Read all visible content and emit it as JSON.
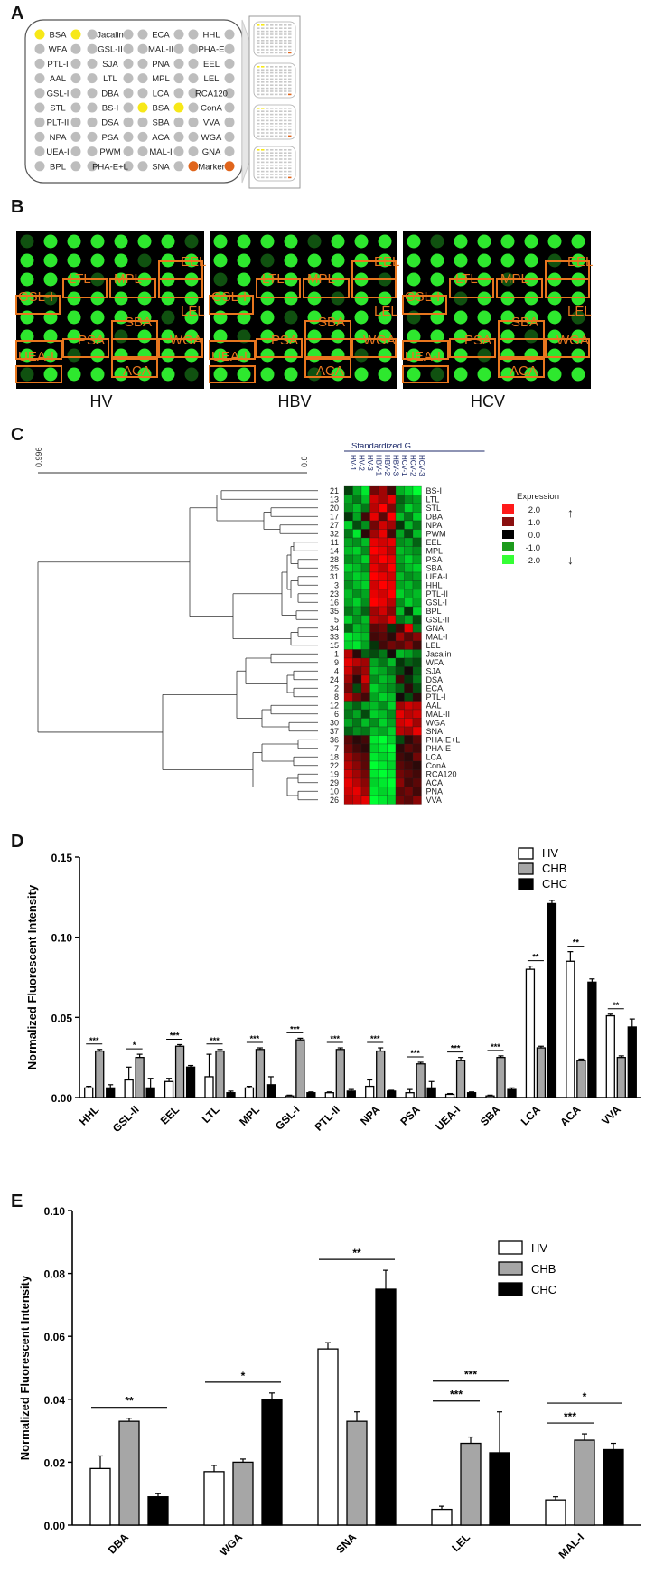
{
  "panels": {
    "a": "A",
    "b": "B",
    "c": "C",
    "d": "D",
    "e": "E"
  },
  "panel_a": {
    "rows": [
      [
        "BSA",
        "Jacalin",
        "ECA",
        "HHL"
      ],
      [
        "WFA",
        "GSL-II",
        "MAL-II",
        "PHA-E"
      ],
      [
        "PTL-I",
        "SJA",
        "PNA",
        "EEL"
      ],
      [
        "AAL",
        "LTL",
        "MPL",
        "LEL"
      ],
      [
        "GSL-I",
        "DBA",
        "LCA",
        "RCA120"
      ],
      [
        "STL",
        "BS-I",
        "BSA",
        "ConA"
      ],
      [
        "PLT-II",
        "DSA",
        "SBA",
        "VVA"
      ],
      [
        "NPA",
        "PSA",
        "ACA",
        "WGA"
      ],
      [
        "UEA-I",
        "PWM",
        "MAL-I",
        "GNA"
      ],
      [
        "BPL",
        "PHA-E+L",
        "SNA",
        "Marker"
      ]
    ],
    "colors": {
      "bsa": "#f7e818",
      "marker": "#e0651c",
      "dot": "#bdbdbd"
    }
  },
  "panel_b": {
    "groups": [
      "HV",
      "HBV",
      "HCV"
    ],
    "boxes": [
      "EEL",
      "LTL",
      "MPL",
      "GSL-I",
      "LEL",
      "SBA",
      "PSA",
      "WGA",
      "UEA-I",
      "ACA"
    ],
    "colors": {
      "box": "#e8761e",
      "spot": "#2ee82e",
      "bg": "#000000"
    }
  },
  "panel_c": {
    "scale_left": "0.996",
    "scale_right": "0.0",
    "header": "Standardized G",
    "columns": [
      "HV-1",
      "HV-2",
      "HV-3",
      "HBV-1",
      "HBV-2",
      "HBV-3",
      "HCV-1",
      "HCV-2",
      "HCV-3"
    ],
    "rows": [
      {
        "id": "21",
        "name": "BS-I"
      },
      {
        "id": "13",
        "name": "LTL"
      },
      {
        "id": "20",
        "name": "STL"
      },
      {
        "id": "17",
        "name": "DBA"
      },
      {
        "id": "27",
        "name": "NPA"
      },
      {
        "id": "32",
        "name": "PWM"
      },
      {
        "id": "11",
        "name": "EEL"
      },
      {
        "id": "14",
        "name": "MPL"
      },
      {
        "id": "28",
        "name": "PSA"
      },
      {
        "id": "25",
        "name": "SBA"
      },
      {
        "id": "31",
        "name": "UEA-I"
      },
      {
        "id": "3",
        "name": "HHL"
      },
      {
        "id": "23",
        "name": "PTL-II"
      },
      {
        "id": "16",
        "name": "GSL-I"
      },
      {
        "id": "35",
        "name": "BPL"
      },
      {
        "id": "5",
        "name": "GSL-II"
      },
      {
        "id": "34",
        "name": "GNA"
      },
      {
        "id": "33",
        "name": "MAL-I"
      },
      {
        "id": "15",
        "name": "LEL"
      },
      {
        "id": "1",
        "name": "Jacalin"
      },
      {
        "id": "9",
        "name": "WFA"
      },
      {
        "id": "4",
        "name": "SJA"
      },
      {
        "id": "24",
        "name": "DSA"
      },
      {
        "id": "2",
        "name": "ECA"
      },
      {
        "id": "8",
        "name": "PTL-I"
      },
      {
        "id": "12",
        "name": "AAL"
      },
      {
        "id": "6",
        "name": "MAL-II"
      },
      {
        "id": "30",
        "name": "WGA"
      },
      {
        "id": "37",
        "name": "SNA"
      },
      {
        "id": "36",
        "name": "PHA-E+L"
      },
      {
        "id": "7",
        "name": "PHA-E"
      },
      {
        "id": "18",
        "name": "LCA"
      },
      {
        "id": "22",
        "name": "ConA"
      },
      {
        "id": "19",
        "name": "RCA120"
      },
      {
        "id": "29",
        "name": "ACA"
      },
      {
        "id": "10",
        "name": "PNA"
      },
      {
        "id": "26",
        "name": "VVA"
      }
    ],
    "matrix": [
      [
        -0.3,
        -1.2,
        -1.8,
        0.8,
        1.2,
        0.4,
        -1.3,
        -1.6,
        -2.0
      ],
      [
        -1.2,
        -0.8,
        -1.4,
        1.6,
        1.2,
        1.8,
        -0.6,
        -1.0,
        -1.2
      ],
      [
        -1.0,
        -1.4,
        -0.8,
        1.4,
        2.0,
        0.9,
        -0.8,
        -1.6,
        -1.2
      ],
      [
        -0.2,
        -1.2,
        0.4,
        1.8,
        0.6,
        2.0,
        -1.4,
        -0.8,
        -1.6
      ],
      [
        -1.6,
        -0.4,
        -1.0,
        0.8,
        1.6,
        1.2,
        -0.2,
        -1.4,
        -0.8
      ],
      [
        -0.8,
        -1.8,
        0.2,
        1.2,
        1.8,
        0.4,
        -1.2,
        -0.4,
        -1.4
      ],
      [
        -1.2,
        -1.0,
        -1.4,
        1.8,
        1.6,
        1.8,
        -1.0,
        -1.2,
        -0.6
      ],
      [
        -1.4,
        -1.6,
        -1.0,
        2.0,
        1.8,
        1.4,
        -1.4,
        -1.2,
        -1.0
      ],
      [
        -1.0,
        -1.2,
        -1.6,
        1.6,
        2.0,
        1.8,
        -1.2,
        -1.6,
        -1.2
      ],
      [
        -1.6,
        -1.4,
        -1.0,
        1.8,
        1.4,
        2.0,
        -1.0,
        -1.4,
        -1.6
      ],
      [
        -1.2,
        -1.6,
        -1.4,
        2.0,
        1.8,
        1.6,
        -1.4,
        -1.0,
        -1.2
      ],
      [
        -1.0,
        -1.4,
        -1.6,
        1.6,
        2.0,
        1.8,
        -1.2,
        -1.4,
        -1.0
      ],
      [
        -1.4,
        -1.0,
        -1.2,
        1.8,
        1.6,
        2.0,
        -1.6,
        -1.2,
        -1.4
      ],
      [
        -1.2,
        -1.6,
        -1.0,
        2.0,
        1.8,
        1.4,
        -1.0,
        -1.6,
        -1.2
      ],
      [
        -0.8,
        -1.2,
        -0.6,
        1.2,
        1.6,
        1.0,
        -1.4,
        -0.2,
        -1.6
      ],
      [
        -1.6,
        -1.0,
        -1.4,
        1.4,
        1.2,
        1.8,
        -0.8,
        -1.2,
        -0.4
      ],
      [
        -0.6,
        -1.4,
        -1.2,
        0.6,
        0.8,
        -0.2,
        0.4,
        1.8,
        -0.8
      ],
      [
        -1.8,
        -1.6,
        -1.4,
        0.4,
        0.6,
        0.2,
        1.2,
        0.6,
        1.0
      ],
      [
        -1.6,
        -1.8,
        -1.2,
        -0.2,
        0.4,
        0.8,
        0.6,
        1.0,
        0.4
      ],
      [
        1.4,
        0.2,
        -0.6,
        -0.4,
        -0.8,
        0.0,
        -1.4,
        -1.2,
        -0.8
      ],
      [
        1.8,
        1.4,
        1.2,
        -1.2,
        -0.8,
        -1.4,
        -0.2,
        -0.6,
        -0.4
      ],
      [
        1.6,
        0.8,
        1.2,
        -1.4,
        -1.2,
        -0.8,
        -0.4,
        0.0,
        -0.6
      ],
      [
        1.2,
        0.2,
        1.6,
        -1.0,
        -1.4,
        -1.2,
        0.4,
        -0.2,
        -0.8
      ],
      [
        0.8,
        -0.4,
        1.0,
        -1.6,
        -1.2,
        -1.0,
        -0.6,
        0.2,
        -0.4
      ],
      [
        1.4,
        0.8,
        0.4,
        -1.2,
        -1.6,
        -1.4,
        0.0,
        -0.4,
        0.2
      ],
      [
        -1.0,
        -0.6,
        -1.2,
        -1.4,
        -1.0,
        -1.6,
        1.2,
        1.6,
        1.4
      ],
      [
        -0.8,
        -1.2,
        -0.4,
        -1.6,
        -1.4,
        -1.0,
        1.8,
        1.4,
        1.6
      ],
      [
        -1.2,
        -0.8,
        -1.4,
        -1.0,
        -1.6,
        -1.2,
        1.6,
        1.8,
        1.2
      ],
      [
        -0.6,
        -1.0,
        -0.8,
        -1.4,
        -1.2,
        -1.6,
        1.4,
        1.2,
        1.8
      ],
      [
        0.6,
        0.2,
        0.4,
        -1.8,
        -2.0,
        -1.6,
        -0.4,
        0.2,
        0.6
      ],
      [
        0.8,
        0.4,
        0.2,
        -1.6,
        -1.8,
        -2.0,
        0.2,
        0.6,
        0.4
      ],
      [
        1.2,
        0.8,
        0.6,
        -1.8,
        -1.6,
        -1.8,
        0.4,
        0.2,
        0.8
      ],
      [
        1.4,
        1.0,
        0.6,
        -2.0,
        -1.8,
        -1.6,
        0.6,
        0.4,
        0.2
      ],
      [
        1.6,
        1.2,
        0.8,
        -1.8,
        -2.0,
        -1.8,
        0.8,
        0.6,
        0.4
      ],
      [
        1.8,
        1.4,
        1.0,
        -1.6,
        -1.8,
        -2.0,
        1.0,
        0.4,
        0.6
      ],
      [
        1.6,
        1.8,
        1.2,
        -1.8,
        -1.6,
        -1.8,
        0.6,
        0.8,
        0.4
      ],
      [
        1.4,
        1.6,
        1.8,
        -2.0,
        -1.8,
        -1.6,
        0.8,
        0.6,
        1.0
      ]
    ],
    "legend": {
      "title": "Expression",
      "entries": [
        {
          "label": "2.0",
          "color": "#ff1a1a"
        },
        {
          "label": "1.0",
          "color": "#8a0f0f"
        },
        {
          "label": "0.0",
          "color": "#000000"
        },
        {
          "label": "-1.0",
          "color": "#1c9a1c"
        },
        {
          "label": "-2.0",
          "color": "#35ff35"
        }
      ],
      "up_arrow": "↑",
      "down_arrow": "↓"
    }
  },
  "chart_data": [
    {
      "type": "bar",
      "ylabel": "Normalized Fluorescent Intensity",
      "ylim": [
        0,
        0.15
      ],
      "yticks": [
        "0.00",
        "0.05",
        "0.10",
        "0.15"
      ],
      "categories": [
        "HHL",
        "GSL-II",
        "EEL",
        "LTL",
        "MPL",
        "GSL-I",
        "PTL-II",
        "NPA",
        "PSA",
        "UEA-I",
        "SBA",
        "LCA",
        "ACA",
        "VVA"
      ],
      "series": [
        {
          "name": "HV",
          "values": [
            0.006,
            0.011,
            0.01,
            0.013,
            0.006,
            0.001,
            0.003,
            0.007,
            0.003,
            0.002,
            0.001,
            0.08,
            0.085,
            0.051
          ]
        },
        {
          "name": "CHB",
          "values": [
            0.029,
            0.025,
            0.032,
            0.029,
            0.03,
            0.036,
            0.03,
            0.029,
            0.021,
            0.023,
            0.025,
            0.031,
            0.023,
            0.025
          ]
        },
        {
          "name": "CHC",
          "values": [
            0.006,
            0.006,
            0.019,
            0.003,
            0.008,
            0.003,
            0.004,
            0.004,
            0.006,
            0.003,
            0.005,
            0.121,
            0.072,
            0.044
          ]
        }
      ],
      "errors": [
        [
          0.001,
          0.008,
          0.002,
          0.014,
          0.001,
          0.0005,
          0.0005,
          0.004,
          0.002,
          0.0005,
          0.0005,
          0.002,
          0.006,
          0.001
        ],
        [
          0.001,
          0.002,
          0.001,
          0.001,
          0.001,
          0.001,
          0.001,
          0.002,
          0.001,
          0.002,
          0.001,
          0.001,
          0.001,
          0.001
        ],
        [
          0.002,
          0.006,
          0.001,
          0.001,
          0.005,
          0.0005,
          0.001,
          0.0005,
          0.004,
          0.0005,
          0.001,
          0.002,
          0.002,
          0.005
        ]
      ],
      "significance": [
        "***",
        "*",
        "***",
        "***",
        "***",
        "***",
        "***",
        "***",
        "***",
        "***",
        "***",
        "**",
        "**",
        "**"
      ],
      "legend_position": "top-right"
    },
    {
      "type": "bar",
      "ylabel": "Normalized Fluorescent Intensity",
      "ylim": [
        0,
        0.1
      ],
      "yticks": [
        "0.00",
        "0.02",
        "0.04",
        "0.06",
        "0.08",
        "0.10"
      ],
      "categories": [
        "DBA",
        "WGA",
        "SNA",
        "LEL",
        "MAL-I"
      ],
      "series": [
        {
          "name": "HV",
          "values": [
            0.018,
            0.017,
            0.056,
            0.005,
            0.008
          ]
        },
        {
          "name": "CHB",
          "values": [
            0.033,
            0.02,
            0.033,
            0.026,
            0.027
          ]
        },
        {
          "name": "CHC",
          "values": [
            0.009,
            0.04,
            0.075,
            0.023,
            0.024
          ]
        }
      ],
      "errors": [
        [
          0.004,
          0.002,
          0.002,
          0.001,
          0.001
        ],
        [
          0.001,
          0.001,
          0.003,
          0.002,
          0.002
        ],
        [
          0.001,
          0.002,
          0.006,
          0.013,
          0.002
        ]
      ],
      "brackets": [
        {
          "cat": 0,
          "from": 0,
          "to": 2,
          "label": "**",
          "level": 0
        },
        {
          "cat": 1,
          "from": 0,
          "to": 2,
          "label": "*",
          "level": 0
        },
        {
          "cat": 2,
          "from": 0,
          "to": 2,
          "label": "**",
          "level": 0
        },
        {
          "cat": 3,
          "from": 0,
          "to": 1,
          "label": "***",
          "level": 0
        },
        {
          "cat": 3,
          "from": 0,
          "to": 2,
          "label": "***",
          "level": 1
        },
        {
          "cat": 4,
          "from": 0,
          "to": 1,
          "label": "***",
          "level": 0
        },
        {
          "cat": 4,
          "from": 0,
          "to": 2,
          "label": "*",
          "level": 1
        }
      ],
      "legend_position": "top-right"
    }
  ]
}
